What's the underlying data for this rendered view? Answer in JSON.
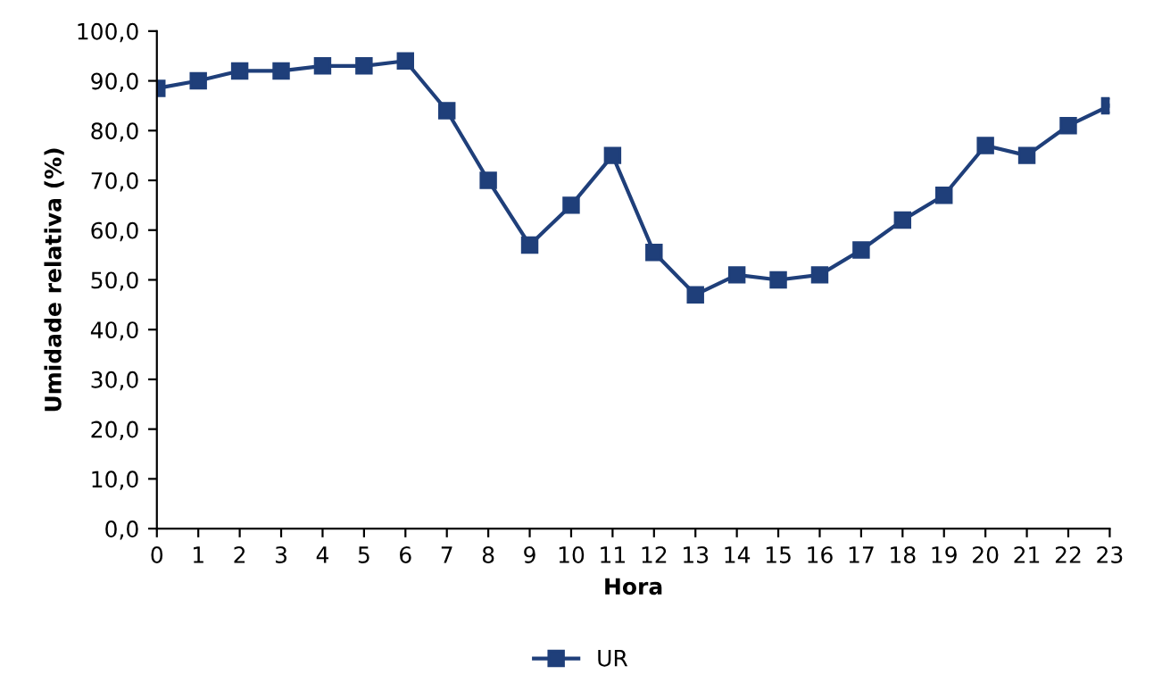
{
  "chart_data": {
    "type": "line",
    "xlabel": "Hora",
    "ylabel": "Umidade relativa (%)",
    "categories": [
      "0",
      "1",
      "2",
      "3",
      "4",
      "5",
      "6",
      "7",
      "8",
      "9",
      "10",
      "11",
      "12",
      "13",
      "14",
      "15",
      "16",
      "17",
      "18",
      "19",
      "20",
      "21",
      "22",
      "23"
    ],
    "series": [
      {
        "name": "UR",
        "color": "#1f3f7a",
        "values": [
          88.5,
          90,
          92,
          92,
          93,
          93,
          94,
          84,
          70,
          57,
          65,
          75,
          55.5,
          47,
          51,
          50,
          51,
          56,
          62,
          67,
          77,
          75,
          81,
          85
        ]
      }
    ],
    "ylim": [
      0,
      100
    ],
    "yticks": [
      {
        "value": 0,
        "label": "0,0"
      },
      {
        "value": 10,
        "label": "10,0"
      },
      {
        "value": 20,
        "label": "20,0"
      },
      {
        "value": 30,
        "label": "30,0"
      },
      {
        "value": 40,
        "label": "40,0"
      },
      {
        "value": 50,
        "label": "50,0"
      },
      {
        "value": 60,
        "label": "60,0"
      },
      {
        "value": 70,
        "label": "70,0"
      },
      {
        "value": 80,
        "label": "80,0"
      },
      {
        "value": 90,
        "label": "90,0"
      },
      {
        "value": 100,
        "label": "100,0"
      }
    ],
    "marker": "square",
    "line_style": "solid",
    "legend": "bottom",
    "grid": false
  }
}
